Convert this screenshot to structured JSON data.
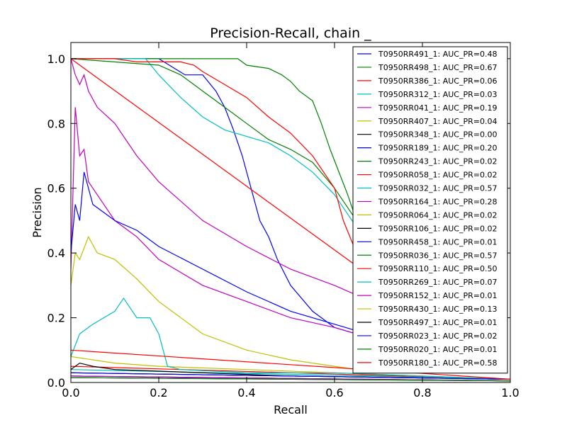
{
  "chart_data": {
    "type": "line",
    "title": "Precision-Recall, chain _",
    "xlabel": "Recall",
    "ylabel": "Precision",
    "xlim": [
      0,
      1
    ],
    "ylim": [
      0,
      1.05
    ],
    "xticks": [
      "0.0",
      "0.2",
      "0.4",
      "0.6",
      "0.8",
      "1.0"
    ],
    "yticks": [
      "0.0",
      "0.2",
      "0.4",
      "0.6",
      "0.8",
      "1.0"
    ],
    "legend_position": "right",
    "grid": false,
    "series": [
      {
        "name": "T0950RR491_1: AUC_PR=0.48",
        "color": "#0000ff",
        "x": [
          0,
          0.2,
          0.26,
          0.3,
          0.33,
          0.35,
          0.37,
          0.39,
          0.4,
          0.41,
          0.43,
          0.45,
          0.47,
          0.5,
          0.55,
          0.6,
          0.65
        ],
        "y": [
          1,
          1,
          0.95,
          0.95,
          0.9,
          0.85,
          0.78,
          0.7,
          0.65,
          0.6,
          0.5,
          0.45,
          0.38,
          0.3,
          0.22,
          0.17,
          0.15
        ]
      },
      {
        "name": "T0950RR498_1: AUC_PR=0.67",
        "color": "#008000",
        "x": [
          0,
          0.38,
          0.4,
          0.45,
          0.48,
          0.5,
          0.52,
          0.55,
          0.57,
          0.59,
          0.61,
          0.63,
          0.65
        ],
        "y": [
          1,
          1,
          0.98,
          0.97,
          0.95,
          0.93,
          0.9,
          0.87,
          0.8,
          0.72,
          0.65,
          0.58,
          0.5
        ]
      },
      {
        "name": "T0950RR386_1: AUC_PR=0.06",
        "color": "#ff0000",
        "x": [
          0,
          1
        ],
        "y": [
          0.05,
          0.01
        ]
      },
      {
        "name": "T0950RR312_1: AUC_PR=0.03",
        "color": "#00bfbf",
        "x": [
          0,
          1
        ],
        "y": [
          0.04,
          0.01
        ]
      },
      {
        "name": "T0950RR041_1: AUC_PR=0.19",
        "color": "#bf00bf",
        "x": [
          0,
          0.01,
          0.02,
          0.03,
          0.04,
          0.06,
          0.1,
          0.15,
          0.2,
          0.3,
          0.4,
          0.5,
          0.6,
          0.65
        ],
        "y": [
          0.35,
          0.85,
          0.7,
          0.72,
          0.62,
          0.58,
          0.5,
          0.45,
          0.38,
          0.3,
          0.25,
          0.2,
          0.17,
          0.15
        ]
      },
      {
        "name": "T0950RR407_1: AUC_PR=0.04",
        "color": "#bfbf00",
        "x": [
          0,
          0.1,
          0.2,
          0.4,
          0.6,
          0.8,
          1
        ],
        "y": [
          0.08,
          0.06,
          0.05,
          0.04,
          0.03,
          0.02,
          0.01
        ]
      },
      {
        "name": "T0950RR348_1: AUC_PR=0.00",
        "color": "#000000",
        "x": [
          0,
          0.02,
          0.05,
          0.1,
          0.3,
          0.5,
          1
        ],
        "y": [
          0.04,
          0.06,
          0.05,
          0.04,
          0.03,
          0.02,
          0.01
        ]
      },
      {
        "name": "T0950RR189_1: AUC_PR=0.20",
        "color": "#0000ff",
        "x": [
          0,
          0.01,
          0.02,
          0.03,
          0.05,
          0.1,
          0.15,
          0.2,
          0.3,
          0.4,
          0.5,
          0.6,
          0.65
        ],
        "y": [
          0.4,
          0.55,
          0.5,
          0.65,
          0.55,
          0.5,
          0.47,
          0.42,
          0.35,
          0.28,
          0.22,
          0.18,
          0.16
        ]
      },
      {
        "name": "T0950RR243_1: AUC_PR=0.02",
        "color": "#008000",
        "x": [
          0,
          1
        ],
        "y": [
          0.02,
          0.005
        ]
      },
      {
        "name": "T0950RR058_1: AUC_PR=0.02",
        "color": "#ff0000",
        "x": [
          0,
          1
        ],
        "y": [
          0.03,
          0.01
        ]
      },
      {
        "name": "T0950RR032_1: AUC_PR=0.57",
        "color": "#00bfbf",
        "x": [
          0,
          0.17,
          0.2,
          0.25,
          0.3,
          0.35,
          0.4,
          0.45,
          0.5,
          0.55,
          0.6,
          0.65
        ],
        "y": [
          1,
          1,
          0.95,
          0.88,
          0.82,
          0.78,
          0.76,
          0.74,
          0.7,
          0.65,
          0.58,
          0.48
        ]
      },
      {
        "name": "T0950RR164_1: AUC_PR=0.28",
        "color": "#bf00bf",
        "x": [
          0,
          0.01,
          0.02,
          0.03,
          0.04,
          0.06,
          0.1,
          0.15,
          0.2,
          0.3,
          0.4,
          0.5,
          0.6,
          0.65
        ],
        "y": [
          1,
          0.95,
          0.92,
          0.95,
          0.9,
          0.85,
          0.8,
          0.7,
          0.62,
          0.5,
          0.42,
          0.35,
          0.3,
          0.27
        ]
      },
      {
        "name": "T0950RR064_1: AUC_PR=0.02",
        "color": "#bfbf00",
        "x": [
          0,
          1
        ],
        "y": [
          0.03,
          0.01
        ]
      },
      {
        "name": "T0950RR106_1: AUC_PR=0.02",
        "color": "#000000",
        "x": [
          0,
          1
        ],
        "y": [
          0.03,
          0.01
        ]
      },
      {
        "name": "T0950RR458_1: AUC_PR=0.01",
        "color": "#0000ff",
        "x": [
          0,
          1
        ],
        "y": [
          0.02,
          0.005
        ]
      },
      {
        "name": "T0950RR036_1: AUC_PR=0.57",
        "color": "#008000",
        "x": [
          0,
          0.2,
          0.25,
          0.3,
          0.35,
          0.4,
          0.45,
          0.5,
          0.55,
          0.6,
          0.65
        ],
        "y": [
          1,
          0.98,
          0.95,
          0.9,
          0.85,
          0.8,
          0.75,
          0.72,
          0.68,
          0.6,
          0.5
        ]
      },
      {
        "name": "T0950RR110_1: AUC_PR=0.50",
        "color": "#ff0000",
        "x": [
          0,
          0.65
        ],
        "y": [
          1,
          0.36
        ]
      },
      {
        "name": "T0950RR269_1: AUC_PR=0.07",
        "color": "#00bfbf",
        "x": [
          0,
          0.02,
          0.05,
          0.1,
          0.12,
          0.15,
          0.18,
          0.2,
          0.22,
          0.25,
          0.4,
          0.6,
          0.8,
          1
        ],
        "y": [
          0.08,
          0.15,
          0.18,
          0.22,
          0.26,
          0.2,
          0.2,
          0.15,
          0.05,
          0.04,
          0.03,
          0.03,
          0.02,
          0.01
        ]
      },
      {
        "name": "T0950RR152_1: AUC_PR=0.01",
        "color": "#bf00bf",
        "x": [
          0,
          1
        ],
        "y": [
          0.02,
          0.005
        ]
      },
      {
        "name": "T0950RR430_1: AUC_PR=0.13",
        "color": "#bfbf00",
        "x": [
          0,
          0.01,
          0.02,
          0.04,
          0.06,
          0.1,
          0.15,
          0.2,
          0.3,
          0.4,
          0.5,
          0.6,
          0.65
        ],
        "y": [
          0.3,
          0.4,
          0.38,
          0.45,
          0.4,
          0.38,
          0.32,
          0.25,
          0.15,
          0.1,
          0.07,
          0.05,
          0.04
        ]
      },
      {
        "name": "T0950RR497_1: AUC_PR=0.01",
        "color": "#000000",
        "x": [
          0,
          1
        ],
        "y": [
          0.015,
          0.005
        ]
      },
      {
        "name": "T0950RR023_1: AUC_PR=0.02",
        "color": "#0000ff",
        "x": [
          0,
          1
        ],
        "y": [
          0.03,
          0.01
        ]
      },
      {
        "name": "T0950RR020_1: AUC_PR=0.01",
        "color": "#008000",
        "x": [
          0,
          1
        ],
        "y": [
          0.015,
          0.005
        ]
      },
      {
        "name": "T0950RR180_1: AUC_PR=0.58",
        "color": "#ff0000",
        "x": [
          0,
          0.1,
          0.15,
          0.25,
          0.28,
          0.3,
          0.35,
          0.4,
          0.45,
          0.5,
          0.55,
          0.6,
          0.62,
          0.65
        ],
        "y": [
          1,
          1,
          0.99,
          0.99,
          0.98,
          0.96,
          0.92,
          0.88,
          0.82,
          0.77,
          0.7,
          0.6,
          0.5,
          0.4
        ]
      },
      {
        "name": "",
        "color": "#ff0000",
        "x": [
          0,
          1
        ],
        "y": [
          0.1,
          0.01
        ]
      }
    ]
  }
}
